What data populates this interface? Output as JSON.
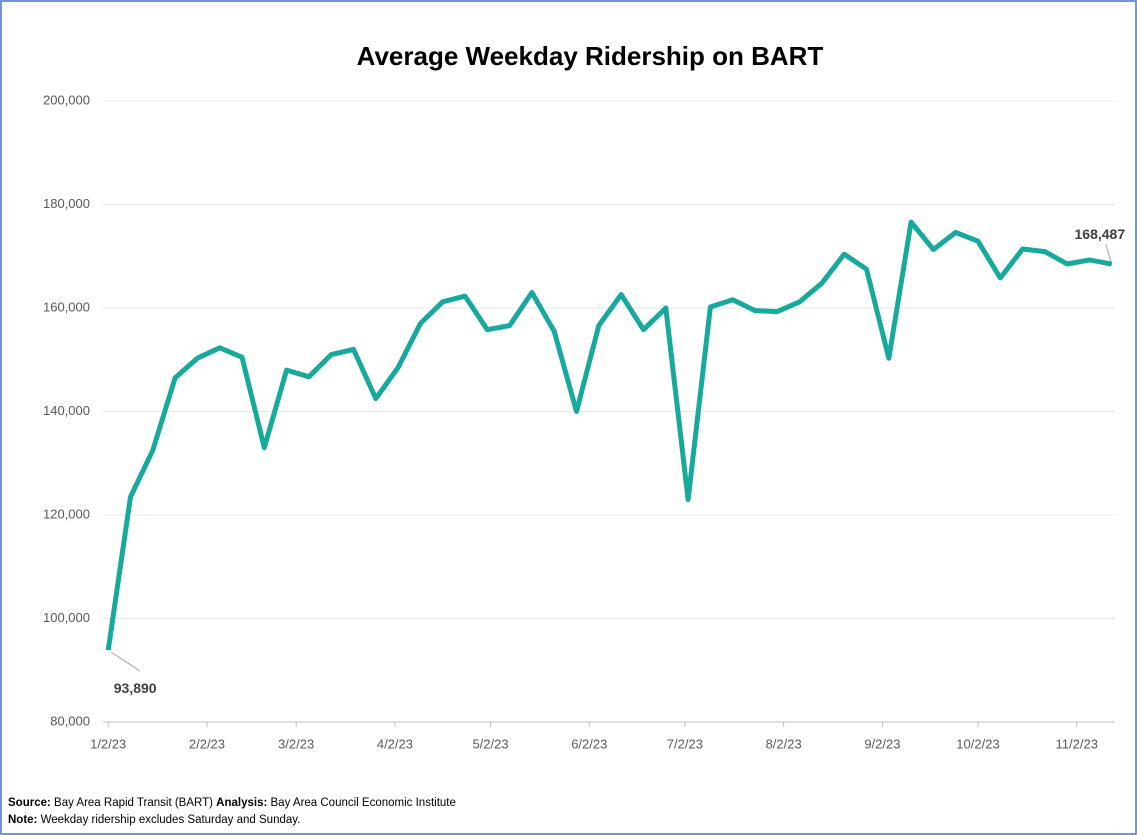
{
  "chart_data": {
    "type": "line",
    "title": "Average Weekday Ridership on BART",
    "x": [
      "2023-01-02",
      "2023-01-09",
      "2023-01-16",
      "2023-01-23",
      "2023-01-30",
      "2023-02-06",
      "2023-02-13",
      "2023-02-20",
      "2023-02-27",
      "2023-03-06",
      "2023-03-13",
      "2023-03-20",
      "2023-03-27",
      "2023-04-03",
      "2023-04-10",
      "2023-04-17",
      "2023-04-24",
      "2023-05-01",
      "2023-05-08",
      "2023-05-15",
      "2023-05-22",
      "2023-05-29",
      "2023-06-05",
      "2023-06-12",
      "2023-06-19",
      "2023-06-26",
      "2023-07-03",
      "2023-07-10",
      "2023-07-17",
      "2023-07-24",
      "2023-07-31",
      "2023-08-07",
      "2023-08-14",
      "2023-08-21",
      "2023-08-28",
      "2023-09-04",
      "2023-09-11",
      "2023-09-18",
      "2023-09-25",
      "2023-10-02",
      "2023-10-09",
      "2023-10-16",
      "2023-10-23",
      "2023-10-30",
      "2023-11-06",
      "2023-11-13"
    ],
    "series": [
      {
        "name": "Average Weekday Ridership",
        "color": "#17a99b",
        "values": [
          93890,
          123500,
          132500,
          146500,
          150300,
          152300,
          150500,
          133000,
          148000,
          146700,
          151000,
          152000,
          142500,
          148500,
          157000,
          161200,
          162300,
          155800,
          156600,
          163000,
          155500,
          140000,
          156600,
          162600,
          155800,
          160000,
          123000,
          160200,
          161600,
          159500,
          159300,
          161200,
          164800,
          170400,
          167500,
          150300,
          176600,
          171300,
          174600,
          172900,
          165800,
          171400,
          170900,
          168500,
          169300,
          168487
        ],
        "value_labels": [
          "93,890",
          null,
          null,
          null,
          null,
          null,
          null,
          null,
          null,
          null,
          null,
          null,
          null,
          null,
          null,
          null,
          null,
          null,
          null,
          null,
          null,
          null,
          null,
          null,
          null,
          null,
          null,
          null,
          null,
          null,
          null,
          null,
          null,
          null,
          null,
          null,
          null,
          null,
          null,
          null,
          null,
          null,
          null,
          null,
          null,
          "168,487"
        ]
      }
    ],
    "xlim": [
      "2023-01-01",
      "2023-11-14"
    ],
    "xticks": [
      {
        "value": "2023-01-02",
        "label": "1/2/23"
      },
      {
        "value": "2023-02-02",
        "label": "2/2/23"
      },
      {
        "value": "2023-03-02",
        "label": "3/2/23"
      },
      {
        "value": "2023-04-02",
        "label": "4/2/23"
      },
      {
        "value": "2023-05-02",
        "label": "5/2/23"
      },
      {
        "value": "2023-06-02",
        "label": "6/2/23"
      },
      {
        "value": "2023-07-02",
        "label": "7/2/23"
      },
      {
        "value": "2023-08-02",
        "label": "8/2/23"
      },
      {
        "value": "2023-09-02",
        "label": "9/2/23"
      },
      {
        "value": "2023-10-02",
        "label": "10/2/23"
      },
      {
        "value": "2023-11-02",
        "label": "11/2/23"
      }
    ],
    "ylim": [
      80000,
      200000
    ],
    "yticks": [
      {
        "value": 80000,
        "label": "80,000"
      },
      {
        "value": 100000,
        "label": "100,000"
      },
      {
        "value": 120000,
        "label": "120,000"
      },
      {
        "value": 140000,
        "label": "140,000"
      },
      {
        "value": 160000,
        "label": "160,000"
      },
      {
        "value": 180000,
        "label": "180,000"
      },
      {
        "value": 200000,
        "label": "200,000"
      }
    ],
    "grid": true
  },
  "footer": {
    "source_label": "Source:",
    "source": "Bay Area Rapid Transit (BART)",
    "analysis_label": "Analysis:",
    "analysis": "Bay Area Council Economic Institute",
    "note_label": "Note:",
    "note": "Weekday ridership excludes Saturday and Sunday."
  }
}
